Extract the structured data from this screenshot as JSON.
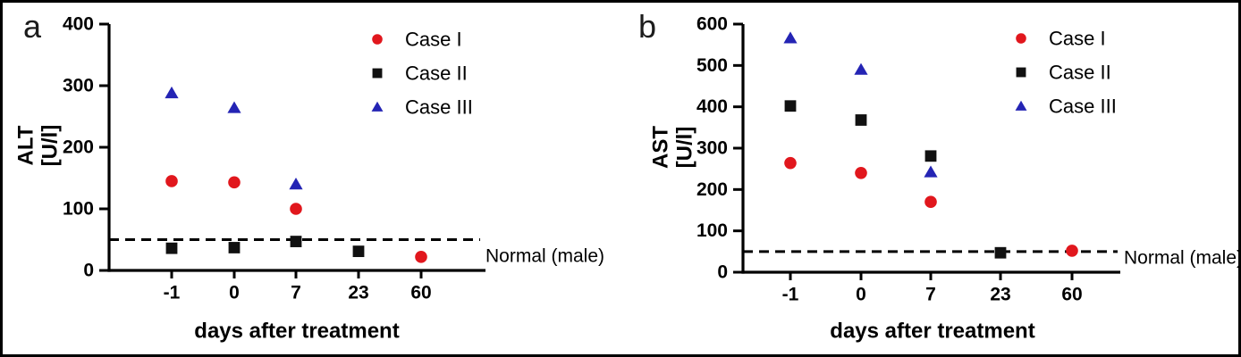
{
  "figure": {
    "background_color": "#ffffff",
    "frame_color": "#000000",
    "axis_color": "#000000"
  },
  "chart_data": [
    {
      "type": "scatter",
      "panel_label": "a",
      "ylabel_lines": [
        "ALT",
        "[U/l]"
      ],
      "xlabel": "days after treatment",
      "x_categories": [
        "-1",
        "0",
        "7",
        "23",
        "60"
      ],
      "ylim": [
        0,
        400
      ],
      "yticks": [
        0,
        100,
        200,
        300,
        400
      ],
      "grid": false,
      "legend_position": "top-right",
      "reference_line": {
        "value": 50,
        "label": "Normal (male)",
        "style": "dashed",
        "color": "#000000"
      },
      "series": [
        {
          "name": "Case I",
          "marker": "circle",
          "color": "#e1171d",
          "values": [
            145,
            143,
            100,
            null,
            22
          ]
        },
        {
          "name": "Case II",
          "marker": "square",
          "color": "#111111",
          "values": [
            36,
            37,
            47,
            31,
            null
          ]
        },
        {
          "name": "Case III",
          "marker": "triangle",
          "color": "#2424b4",
          "values": [
            288,
            264,
            140,
            null,
            null
          ]
        }
      ]
    },
    {
      "type": "scatter",
      "panel_label": "b",
      "ylabel_lines": [
        "AST",
        "[U/l]"
      ],
      "xlabel": "days after treatment",
      "x_categories": [
        "-1",
        "0",
        "7",
        "23",
        "60"
      ],
      "ylim": [
        0,
        600
      ],
      "yticks": [
        0,
        100,
        200,
        300,
        400,
        500,
        600
      ],
      "grid": false,
      "legend_position": "top-right",
      "reference_line": {
        "value": 50,
        "label": "Normal (male)",
        "style": "dashed",
        "color": "#000000"
      },
      "series": [
        {
          "name": "Case I",
          "marker": "circle",
          "color": "#e1171d",
          "values": [
            264,
            240,
            170,
            null,
            52
          ]
        },
        {
          "name": "Case II",
          "marker": "square",
          "color": "#111111",
          "values": [
            402,
            368,
            281,
            47,
            null
          ]
        },
        {
          "name": "Case III",
          "marker": "triangle",
          "color": "#2424b4",
          "values": [
            566,
            490,
            242,
            null,
            null
          ]
        }
      ]
    }
  ]
}
